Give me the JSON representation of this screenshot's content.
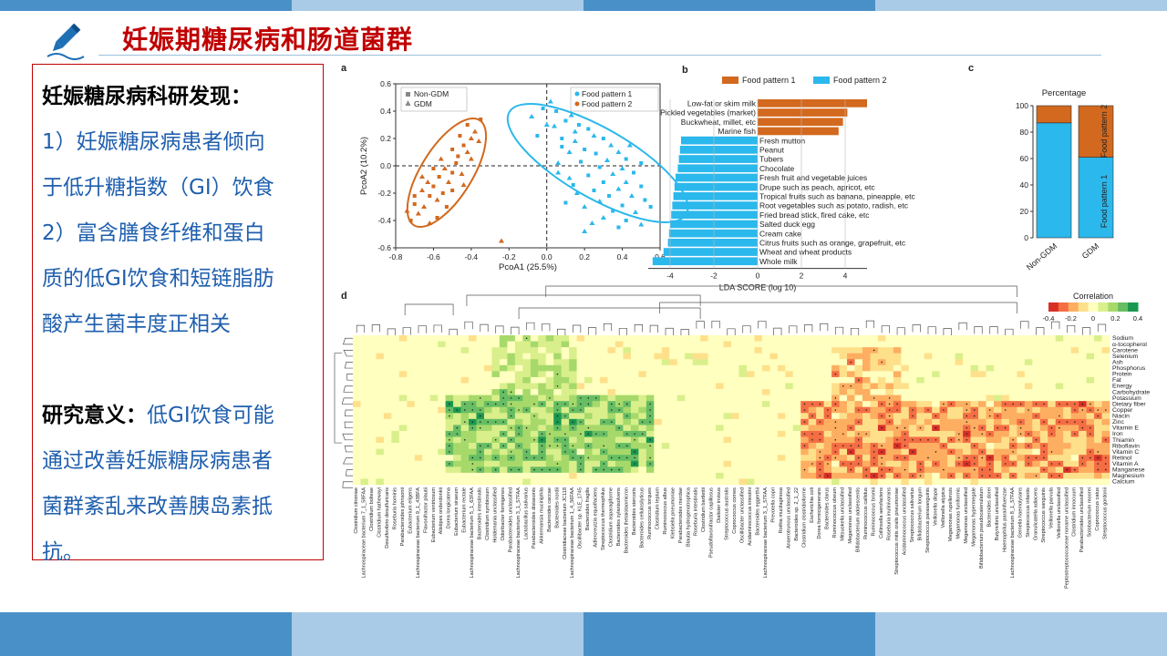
{
  "slide": {
    "title": "妊娠期糖尿病和肠道菌群",
    "text": {
      "heading": "妊娠糖尿病科研发现：",
      "lines": [
        "1）妊娠糖尿病患者倾向",
        "于低升糖指数（GI）饮食",
        "2）富含膳食纤维和蛋白",
        "质的低GI饮食和短链脂肪",
        "酸产生菌丰度正相关"
      ],
      "meaning_label": "研究意义：",
      "meaning_lines": [
        "低GI饮食可能",
        "通过改善妊娠糖尿病患者",
        "菌群紊乱来改善胰岛素抵",
        "抗。"
      ]
    }
  },
  "colors": {
    "blue": "#2bb8ec",
    "orange": "#d2691e",
    "title_red": "#c00000",
    "body_blue": "#1f5fae"
  },
  "chart_data": [
    {
      "panel": "a",
      "type": "scatter",
      "xlabel": "PcoA1 (25.5%)",
      "ylabel": "PcoA2 (10.2%)",
      "xlim": [
        -0.8,
        0.6
      ],
      "ylim": [
        -0.6,
        0.6
      ],
      "xticks": [
        "-0.8",
        "-0.6",
        "-0.4",
        "-0.2",
        "0.0",
        "0.2",
        "0.4",
        "0.6"
      ],
      "yticks": [
        "0.6",
        "0.4",
        "0.2",
        "0.0",
        "-0.2",
        "-0.4",
        "-0.6"
      ],
      "legend_shape": [
        "Non-GDM",
        "GDM"
      ],
      "legend_color": [
        "Food pattern 1",
        "Food pattern 2"
      ],
      "series": [
        {
          "name": "Food pattern 1",
          "points": [
            [
              -0.02,
              0.42
            ],
            [
              0.02,
              0.47
            ],
            [
              0.05,
              0.4
            ],
            [
              -0.08,
              0.36
            ],
            [
              0.1,
              0.33
            ],
            [
              0.13,
              0.37
            ],
            [
              0.17,
              0.3
            ],
            [
              0.04,
              0.29
            ],
            [
              0.22,
              0.27
            ],
            [
              0.25,
              0.22
            ],
            [
              0.08,
              0.2
            ],
            [
              0.15,
              0.18
            ],
            [
              0.3,
              0.2
            ],
            [
              0.34,
              0.15
            ],
            [
              0.2,
              0.12
            ],
            [
              0.12,
              0.1
            ],
            [
              0.26,
              0.09
            ],
            [
              0.38,
              0.1
            ],
            [
              0.42,
              0.05
            ],
            [
              0.32,
              0.04
            ],
            [
              0.18,
              0.03
            ],
            [
              0.06,
              0.02
            ],
            [
              0.28,
              -0.01
            ],
            [
              0.4,
              -0.02
            ],
            [
              0.46,
              -0.05
            ],
            [
              0.35,
              -0.06
            ],
            [
              0.22,
              -0.07
            ],
            [
              0.12,
              -0.09
            ],
            [
              0.3,
              -0.12
            ],
            [
              0.42,
              -0.12
            ],
            [
              0.5,
              -0.15
            ],
            [
              0.38,
              -0.17
            ],
            [
              0.25,
              -0.18
            ],
            [
              0.16,
              -0.2
            ],
            [
              0.33,
              -0.22
            ],
            [
              0.45,
              -0.22
            ],
            [
              0.52,
              -0.25
            ],
            [
              0.28,
              -0.26
            ],
            [
              0.4,
              -0.29
            ],
            [
              0.2,
              -0.3
            ],
            [
              0.35,
              -0.33
            ],
            [
              0.47,
              -0.34
            ],
            [
              0.1,
              -0.27
            ],
            [
              0.3,
              -0.38
            ],
            [
              0.42,
              -0.4
            ],
            [
              0.24,
              -0.42
            ],
            [
              0.38,
              -0.45
            ],
            [
              0.5,
              -0.43
            ],
            [
              0.55,
              -0.3
            ],
            [
              0.15,
              0.25
            ],
            [
              0.08,
              0.14
            ],
            [
              0.0,
              0.3
            ],
            [
              -0.05,
              0.22
            ],
            [
              0.44,
              0.15
            ],
            [
              0.5,
              0.02
            ],
            [
              0.2,
              -0.48
            ],
            [
              0.14,
              -0.14
            ],
            [
              0.06,
              -0.05
            ]
          ]
        },
        {
          "name": "Food pattern 2",
          "points": [
            [
              -0.72,
              -0.4
            ],
            [
              -0.68,
              -0.35
            ],
            [
              -0.7,
              -0.28
            ],
            [
              -0.65,
              -0.3
            ],
            [
              -0.62,
              -0.22
            ],
            [
              -0.66,
              -0.18
            ],
            [
              -0.6,
              -0.15
            ],
            [
              -0.58,
              -0.25
            ],
            [
              -0.55,
              -0.2
            ],
            [
              -0.63,
              -0.12
            ],
            [
              -0.57,
              -0.08
            ],
            [
              -0.52,
              -0.12
            ],
            [
              -0.5,
              -0.05
            ],
            [
              -0.54,
              -0.02
            ],
            [
              -0.48,
              0.02
            ],
            [
              -0.45,
              -0.06
            ],
            [
              -0.47,
              0.07
            ],
            [
              -0.42,
              0.1
            ],
            [
              -0.44,
              0.15
            ],
            [
              -0.4,
              0.2
            ],
            [
              -0.46,
              0.22
            ],
            [
              -0.38,
              0.25
            ],
            [
              -0.42,
              0.3
            ],
            [
              -0.36,
              0.18
            ],
            [
              -0.5,
              0.12
            ],
            [
              -0.56,
              0.05
            ],
            [
              -0.6,
              -0.02
            ],
            [
              -0.66,
              -0.08
            ],
            [
              -0.53,
              -0.3
            ],
            [
              -0.74,
              -0.33
            ],
            [
              -0.35,
              0.34
            ],
            [
              -0.4,
              0.05
            ],
            [
              -0.58,
              -0.38
            ],
            [
              -0.62,
              -0.42
            ],
            [
              -0.5,
              -0.18
            ],
            [
              -0.44,
              -0.14
            ],
            [
              -0.7,
              -0.22
            ],
            [
              -0.24,
              -0.55
            ]
          ]
        }
      ]
    },
    {
      "panel": "b",
      "type": "bar",
      "xlabel": "LDA SCORE (log 10)",
      "xlim": [
        -5,
        5
      ],
      "xticks": [
        "-4",
        "-2",
        "0",
        "2",
        "4"
      ],
      "legend": [
        "Food pattern 1",
        "Food pattern 2"
      ],
      "categories": [
        "Low-fat or skim milk",
        "Pickled vegetables (market)",
        "Buckwheat, millet, etc",
        "Marine fish",
        "Fresh mutton",
        "Peanut",
        "Tubers",
        "Chocolate",
        "Fresh fruit and vegetable juices",
        "Drupe such as peach, apricot, etc",
        "Tropical fruits such as banana, pineapple, etc",
        "Root vegetables such as potato, radish, etc",
        "Fried bread stick, fired cake, etc",
        "Salted duck egg",
        "Cream cake",
        "Citrus fruits such as orange, grapefruit, etc",
        "Wheat and wheat products",
        "Whole milk"
      ],
      "values": [
        5.0,
        4.1,
        3.9,
        3.7,
        -3.5,
        -3.55,
        -3.6,
        -3.65,
        -3.75,
        -3.8,
        -3.85,
        -3.9,
        -3.95,
        -4.0,
        -4.05,
        -4.1,
        -4.3,
        -4.8
      ]
    },
    {
      "panel": "c",
      "type": "bar",
      "title": "Percentage",
      "categories": [
        "Non-GDM",
        "GDM"
      ],
      "yticks": [
        "100",
        "80",
        "60",
        "40",
        "20",
        "0"
      ],
      "ylim": [
        0,
        100
      ],
      "series": [
        {
          "name": "Food pattern 1",
          "values": [
            87,
            61
          ]
        },
        {
          "name": "Food pattern 2",
          "values": [
            13,
            39
          ]
        }
      ]
    },
    {
      "panel": "d",
      "type": "heatmap",
      "legend_title": "Correlation",
      "scale_ticks": [
        "-0.4",
        "-0.2",
        "0",
        "0.2",
        "0.4"
      ],
      "rows": [
        "Sodium",
        "α-tocopherol",
        "Carotene",
        "Selenium",
        "Ash",
        "Phosphorus",
        "Protein",
        "Fat",
        "Energy",
        "Carbohydrate",
        "Potassium",
        "Dietary fiber",
        "Copper",
        "Niacin",
        "Zinc",
        "Vitamin E",
        "Iron",
        "Thiamin",
        "Riboflavin",
        "Vitamin C",
        "Retinol",
        "Vitamin A",
        "Manganese",
        "Magnesium",
        "Calcium"
      ],
      "columns": [
        "Clostridium citroniae",
        "Lachnospiraceae bacterium 7_1_58FAA",
        "Clostridium bolteae",
        "Clostridium hathewayi",
        "Desulfovibrio desulfuricans",
        "Roseburia hominis",
        "Parabacteroides johnsonii",
        "Eubacterium eligens",
        "Lachnospiraceae bacterium 9_1_43BFA",
        "Flavonifractor plautii",
        "Eubacterium ventriosum",
        "Alistipes onderdonkii",
        "Dorea longicatena",
        "Eubacterium siraeum",
        "Eubacterium rectale",
        "Lachnospiraceae bacterium 5_1_63FAA",
        "Bacteroides intestinalis",
        "Clostridium symbiosum",
        "Holdemania unclassified",
        "Odoribacter formigenes",
        "Parabacteroides unclassified",
        "Lachnospiraceae bacterium 3_1_57FAA",
        "Lactobacillus salivarius",
        "Parabacteroides distasonis",
        "Akkermansia muciniphila",
        "Bacteroides caccae",
        "Bacteroides nordii",
        "Clostridiaceae bacterium JC118",
        "Lachnospiraceae bacterium 1_4_56FAA",
        "Oscillibacter sp. KLE_1745",
        "Bacteroides fragilis",
        "Adlercreutzia equolfaciens",
        "Streptococcus thermophilus",
        "Clostridium asparagiforme",
        "Bacteroides xylanisolvens",
        "Bacteroides thetaiotaomicron",
        "Bacteroides stercoris",
        "Bacteroides cellulosilyticus",
        "Ruminococcus torques",
        "Clostridium leptum",
        "Ruminococcus albus",
        "Klebsiella pneumoniae",
        "Parabacteroides merdae",
        "Blautia hydrogenotrophica",
        "Roseburia intestinalis",
        "Clostridium bartlettii",
        "Pseudoflavonifractor capillosus",
        "Dialister invisus",
        "Streptococcus australis",
        "Coprococcus comes",
        "Oscillibacter unclassified",
        "Acidaminococcus intestini",
        "Bacteroides eggerthii",
        "Lachnospiraceae bacterium 3_1_57FAA",
        "Prevotella copri",
        "Rothia mucilaginosa",
        "Anaerotruncus unclassified",
        "Bacteroides sp. 2_1_22",
        "Clostridium clostridioforme",
        "Escherichia coli",
        "Dorea formicigenerans",
        "Bacteroides clarus",
        "Ruminococcus obeum",
        "Mitsuokella unclassified",
        "Megamonas unclassified",
        "Bifidobacterium adolescentis",
        "Ruminococcus callidus",
        "Ruminococcus bromii",
        "Collinsella aerofaciens",
        "Roseburia inulinivorans",
        "Streptococcus mitis oralis pneumoniae",
        "Acidaminococcus unclassified",
        "Streptococcus salivarius",
        "Bifidobacterium longum",
        "Streptococcus parasanguinis",
        "Veillonella dispar",
        "Veillonella atypica",
        "Megamonas rupellensis",
        "Megamonas funiformis",
        "Megamonas unclassified",
        "Megamonas hypermegale",
        "Bifidobacterium pseudocatenulatum",
        "Bacteroides dorei",
        "Butyrivibrio unclassified",
        "Haemophilus parainfluenzae",
        "Lachnospiraceae bacterium 8_1_57FAA",
        "Gemella haemolysans",
        "Streptococcus infantis",
        "Granulicatella adiacens",
        "Streptococcus sanguinis",
        "Veillonella parvula",
        "Veillonella unclassified",
        "Peptostreptococcaceae noname unclassified",
        "Clostridium innocuum",
        "Parabacteroides unclassified",
        "Solobacterium moorei",
        "Coprococcus catus",
        "Streptococcus gordonii"
      ]
    }
  ]
}
